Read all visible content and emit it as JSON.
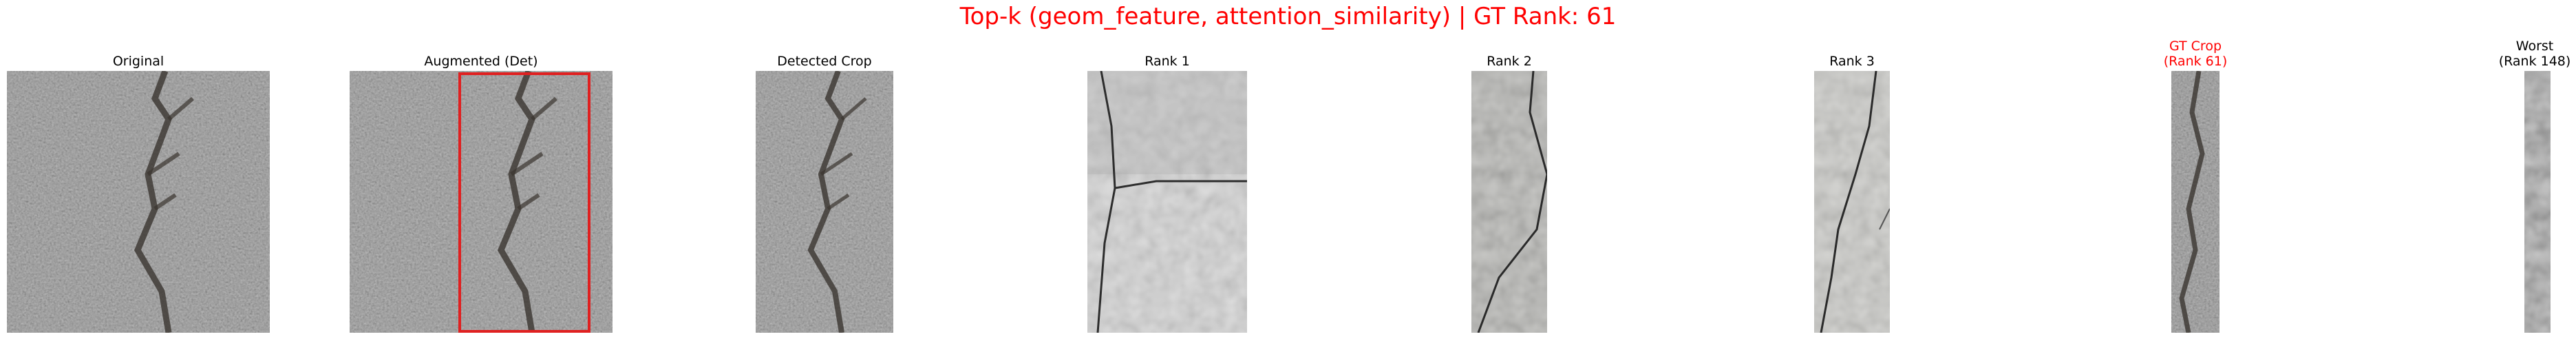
{
  "figure": {
    "title": "Top-k (geom_feature, attention_similarity) | GT Rank: 61",
    "title_color": "#ff0000"
  },
  "panels": [
    {
      "key": "original",
      "title": "Original",
      "title_color": "#000000"
    },
    {
      "key": "augmented",
      "title": "Augmented (Det)",
      "title_color": "#000000",
      "box_color": "#e02020"
    },
    {
      "key": "detected_crop",
      "title": "Detected Crop",
      "title_color": "#000000"
    },
    {
      "key": "rank1",
      "title": "Rank 1",
      "title_color": "#000000"
    },
    {
      "key": "rank2",
      "title": "Rank 2",
      "title_color": "#000000"
    },
    {
      "key": "rank3",
      "title": "Rank 3",
      "title_color": "#000000"
    },
    {
      "key": "gt_crop",
      "title": "GT Crop",
      "title_line2": "(Rank 61)",
      "title_color": "#ff0000"
    },
    {
      "key": "worst",
      "title": "Worst",
      "title_line2": "(Rank 148)",
      "title_color": "#000000"
    }
  ]
}
